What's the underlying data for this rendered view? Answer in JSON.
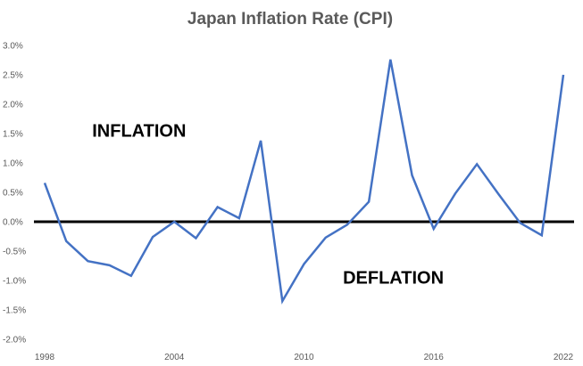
{
  "chart_data": {
    "type": "line",
    "title": "Japan Inflation Rate (CPI)",
    "xlabel": "",
    "ylabel": "",
    "x": [
      1998,
      1999,
      2000,
      2001,
      2002,
      2003,
      2004,
      2005,
      2006,
      2007,
      2008,
      2009,
      2010,
      2011,
      2012,
      2013,
      2014,
      2015,
      2016,
      2017,
      2018,
      2019,
      2020,
      2021,
      2022
    ],
    "series": [
      {
        "values": [
          0.66,
          -0.33,
          -0.67,
          -0.74,
          -0.92,
          -0.26,
          0.0,
          -0.28,
          0.25,
          0.06,
          1.38,
          -1.35,
          -0.72,
          -0.27,
          -0.05,
          0.34,
          2.76,
          0.79,
          -0.12,
          0.48,
          0.98,
          0.47,
          -0.02,
          -0.23,
          2.5
        ],
        "color": "#4472c4"
      }
    ],
    "ylim": [
      -2.0,
      3.0
    ],
    "yticks": [
      3.0,
      2.5,
      2.0,
      1.5,
      1.0,
      0.5,
      0.0,
      -0.5,
      -1.0,
      -1.5,
      -2.0
    ],
    "ytick_labels": [
      "3.0%",
      "2.5%",
      "2.0%",
      "1.5%",
      "1.0%",
      "0.5%",
      "0.0%",
      "-0.5%",
      "-1.0%",
      "-1.5%",
      "-2.0%"
    ],
    "xticks": [
      1998,
      2004,
      2010,
      2016,
      2022
    ],
    "xtick_labels": [
      "1998",
      "2004",
      "2010",
      "2016",
      "2022"
    ],
    "zero_line_color": "#000000",
    "grid": false,
    "annotations": [
      {
        "text": "INFLATION",
        "x": 2000.2,
        "y": 1.45
      },
      {
        "text": "DEFLATION",
        "x": 2011.8,
        "y": -1.05
      }
    ]
  }
}
